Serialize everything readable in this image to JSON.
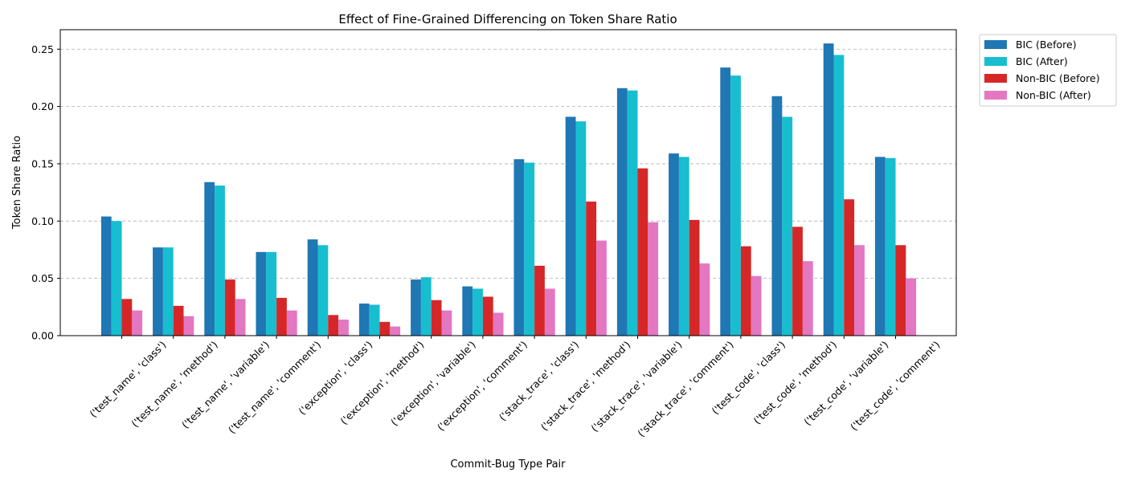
{
  "chart_data": {
    "type": "bar",
    "title": "Effect of Fine-Grained Differencing on Token Share Ratio",
    "xlabel": "Commit-Bug Type Pair",
    "ylabel": "Token Share Ratio",
    "ylim": [
      0,
      0.267
    ],
    "yticks": [
      "0.00",
      "0.05",
      "0.10",
      "0.15",
      "0.20",
      "0.25"
    ],
    "grid": "y-dashed",
    "legend_position": "outside-top-right",
    "categories": [
      "('test_name', 'class')",
      "('test_name', 'method')",
      "('test_name', 'variable')",
      "('test_name', 'comment')",
      "('exception', 'class')",
      "('exception', 'method')",
      "('exception', 'variable')",
      "('exception', 'comment')",
      "('stack_trace', 'class')",
      "('stack_trace', 'method')",
      "('stack_trace', 'variable')",
      "('stack_trace', 'comment')",
      "('test_code', 'class')",
      "('test_code', 'method')",
      "('test_code', 'variable')",
      "('test_code', 'comment')"
    ],
    "series": [
      {
        "name": "BIC (Before)",
        "color": "#1f77b4",
        "values": [
          0.104,
          0.077,
          0.134,
          0.073,
          0.084,
          0.028,
          0.049,
          0.043,
          0.154,
          0.191,
          0.216,
          0.159,
          0.234,
          0.209,
          0.255,
          0.156
        ]
      },
      {
        "name": "BIC (After)",
        "color": "#17becf",
        "values": [
          0.1,
          0.077,
          0.131,
          0.073,
          0.079,
          0.027,
          0.051,
          0.041,
          0.151,
          0.187,
          0.214,
          0.156,
          0.227,
          0.191,
          0.245,
          0.155
        ]
      },
      {
        "name": "Non-BIC (Before)",
        "color": "#d62728",
        "values": [
          0.032,
          0.026,
          0.049,
          0.033,
          0.018,
          0.012,
          0.031,
          0.034,
          0.061,
          0.117,
          0.146,
          0.101,
          0.078,
          0.095,
          0.119,
          0.079
        ]
      },
      {
        "name": "Non-BIC (After)",
        "color": "#e377c2",
        "values": [
          0.022,
          0.017,
          0.032,
          0.022,
          0.014,
          0.008,
          0.022,
          0.02,
          0.041,
          0.083,
          0.099,
          0.063,
          0.052,
          0.065,
          0.079,
          0.05
        ]
      }
    ]
  }
}
